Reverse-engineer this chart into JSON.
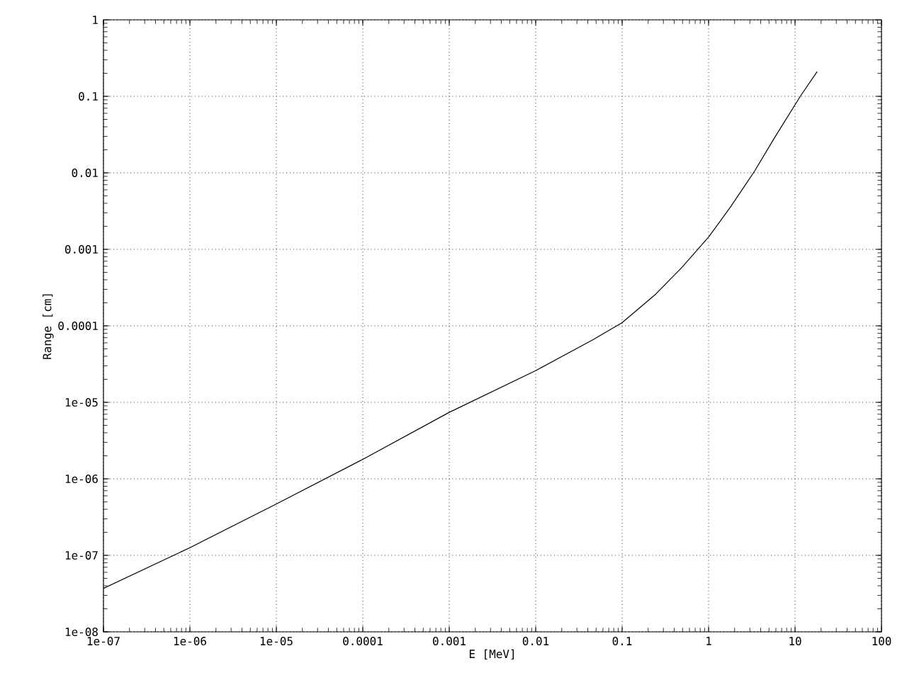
{
  "chart_data": {
    "type": "line",
    "xlabel": "E [MeV]",
    "ylabel": "Range [cm]",
    "log": "xy",
    "grid": true,
    "line_style": "solid",
    "marker": "none",
    "xlim": [
      1e-07,
      100
    ],
    "ylim": [
      1e-08,
      1
    ],
    "xticks": [
      {
        "value": 1e-07,
        "label": "1e-07"
      },
      {
        "value": 1e-06,
        "label": "1e-06"
      },
      {
        "value": 1e-05,
        "label": "1e-05"
      },
      0.0001,
      0.001,
      0.01,
      0.1,
      1,
      10,
      100
    ],
    "yticks": [
      {
        "value": 1e-08,
        "label": "1e-08"
      },
      {
        "value": 1e-07,
        "label": "1e-07"
      },
      {
        "value": 1e-06,
        "label": "1e-06"
      },
      {
        "value": 1e-05,
        "label": "1e-05"
      },
      0.0001,
      0.001,
      0.01,
      0.1,
      1
    ],
    "series": [
      {
        "color": "#000000",
        "x": [
          1e-07,
          1e-06,
          1e-05,
          0.0001,
          0.001,
          0.01,
          0.045,
          0.1,
          0.245,
          0.49,
          1,
          1.8,
          3.4,
          5.6,
          11.5,
          18
        ],
        "values": [
          3.7e-08,
          1.26e-07,
          4.7e-07,
          1.8e-06,
          7.4e-06,
          2.6e-05,
          6.5e-05,
          0.00011,
          0.00026,
          0.00058,
          0.00145,
          0.0036,
          0.0105,
          0.027,
          0.1,
          0.21
        ]
      }
    ]
  }
}
